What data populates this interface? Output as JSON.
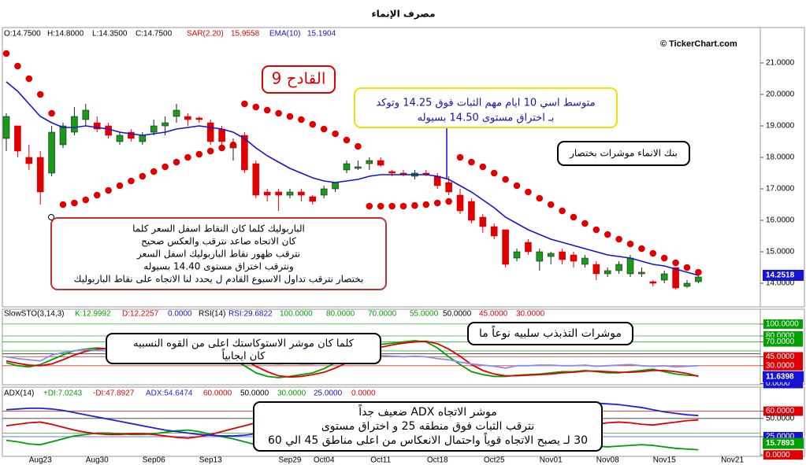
{
  "chart_data": [
    {
      "type": "candlestick",
      "title": "مصرف الإنماء",
      "header": [
        "O:14.7500",
        "H:14.8000",
        "L:14.3500",
        "C:14.7500"
      ],
      "watermark": "© TickerChart.com",
      "categories": [
        null,
        null,
        null,
        "Aug23",
        null,
        null,
        null,
        null,
        "Aug30",
        null,
        null,
        null,
        null,
        "Sep06",
        null,
        null,
        null,
        null,
        "Sep13",
        null,
        null,
        null,
        null,
        null,
        null,
        "Sep29",
        null,
        null,
        "Oct04",
        null,
        null,
        null,
        null,
        "Oct11",
        null,
        null,
        null,
        null,
        "Oct18",
        null,
        null,
        null,
        null,
        "Oct25",
        null,
        null,
        null,
        null,
        "Nov01",
        null,
        null,
        null,
        null,
        "Nov08",
        null,
        null,
        null,
        null,
        "Nov15",
        null,
        null,
        null,
        null,
        null,
        "Nov21"
      ],
      "open": [
        18.6,
        19.0,
        18.0,
        18.0,
        17.5,
        18.4,
        18.8,
        19.2,
        19.1,
        19.0,
        18.5,
        18.8,
        18.5,
        18.8,
        19.0,
        19.3,
        19.3,
        19.25,
        19.1,
        18.9,
        18.3,
        18.7,
        17.8,
        16.9,
        16.9,
        16.8,
        16.9,
        16.75,
        16.8,
        17.0,
        17.6,
        17.65,
        17.8,
        17.9,
        17.55,
        17.5,
        17.4,
        17.5,
        17.4,
        17.2,
        16.8,
        16.6,
        16.1,
        15.8,
        15.7,
        14.8,
        15.3,
        14.7,
        14.85,
        15.0,
        14.9,
        14.6,
        14.6,
        14.3,
        14.4,
        14.3,
        14.3,
        14.05,
        14.1,
        14.5,
        13.9,
        14.05,
        null,
        null,
        null
      ],
      "high": [
        19.4,
        19.0,
        18.4,
        18.2,
        19.0,
        19.1,
        19.6,
        19.7,
        19.3,
        19.1,
        18.8,
        18.9,
        18.8,
        19.2,
        19.3,
        19.7,
        19.4,
        19.3,
        19.2,
        19.0,
        18.6,
        18.8,
        17.9,
        17.0,
        17.0,
        17.0,
        17.0,
        16.8,
        17.1,
        17.2,
        17.9,
        17.9,
        18.0,
        18.0,
        17.6,
        17.6,
        17.6,
        17.6,
        17.5,
        17.4,
        17.0,
        16.7,
        16.2,
        15.9,
        15.7,
        15.1,
        15.4,
        15.1,
        15.0,
        15.1,
        15.0,
        14.9,
        14.7,
        14.5,
        14.7,
        14.9,
        14.5,
        14.1,
        14.4,
        14.5,
        14.1,
        14.3,
        null,
        null,
        null
      ],
      "low": [
        18.2,
        18.0,
        17.6,
        16.5,
        17.4,
        18.3,
        18.7,
        19.0,
        18.8,
        18.6,
        18.4,
        18.5,
        18.4,
        18.7,
        18.7,
        19.1,
        19.0,
        19.1,
        18.4,
        18.3,
        17.9,
        17.5,
        16.7,
        16.6,
        16.3,
        16.7,
        16.6,
        16.5,
        16.7,
        16.9,
        17.5,
        17.6,
        17.6,
        17.7,
        17.4,
        17.4,
        17.3,
        17.4,
        17.0,
        16.8,
        16.2,
        15.9,
        15.6,
        15.4,
        14.5,
        14.7,
        14.9,
        14.4,
        14.6,
        14.6,
        14.5,
        14.5,
        14.1,
        14.2,
        14.3,
        14.2,
        14.2,
        13.9,
        14.0,
        13.8,
        13.85,
        14.0,
        null,
        null,
        null
      ],
      "close": [
        19.3,
        18.2,
        17.8,
        16.9,
        18.8,
        19.0,
        19.3,
        19.5,
        18.9,
        18.7,
        18.7,
        18.6,
        18.7,
        19.0,
        19.1,
        19.5,
        19.2,
        19.2,
        18.5,
        18.5,
        18.4,
        17.6,
        16.8,
        16.8,
        16.8,
        16.9,
        16.8,
        16.6,
        17.0,
        17.2,
        17.8,
        17.7,
        17.9,
        17.75,
        17.5,
        17.45,
        17.5,
        17.45,
        17.1,
        16.9,
        16.3,
        16.0,
        15.8,
        15.5,
        14.6,
        15.0,
        15.0,
        15.0,
        14.95,
        14.75,
        14.7,
        14.8,
        14.3,
        14.4,
        14.6,
        14.8,
        14.35,
        14.0,
        14.3,
        13.85,
        14.0,
        14.2,
        null,
        null,
        null
      ],
      "up_color": "#1a9a1a",
      "down_color": "#e00000",
      "series": [
        {
          "name": "SAR(2.20)",
          "header_value": 15.9558,
          "color": "#e00000",
          "style": "dots",
          "values": [
            21.3,
            20.9,
            20.5,
            20.0,
            19.4,
            16.5,
            16.55,
            16.65,
            16.8,
            16.95,
            17.1,
            17.25,
            17.4,
            17.55,
            17.7,
            17.85,
            18.0,
            18.1,
            18.2,
            18.3,
            18.4,
            19.7,
            19.6,
            19.5,
            19.4,
            19.3,
            19.2,
            19.05,
            18.9,
            18.75,
            18.55,
            18.35,
            16.45,
            16.45,
            16.45,
            16.45,
            16.47,
            16.5,
            16.55,
            16.6,
            18.0,
            17.85,
            17.7,
            17.5,
            17.3,
            17.1,
            16.9,
            16.7,
            16.5,
            16.3,
            16.1,
            15.9,
            15.7,
            15.55,
            15.4,
            15.25,
            15.1,
            14.95,
            14.8,
            14.65,
            14.5,
            14.35,
            null,
            null,
            null
          ]
        },
        {
          "name": "EMA(10)",
          "header_value": 15.1904,
          "color": "#1414d2",
          "style": "line",
          "values": [
            20.4,
            20.1,
            19.7,
            19.3,
            19.1,
            18.95,
            18.95,
            19.0,
            18.95,
            18.9,
            18.8,
            18.75,
            18.7,
            18.75,
            18.8,
            18.9,
            18.95,
            19.0,
            18.95,
            18.9,
            18.8,
            18.6,
            18.3,
            18.05,
            17.85,
            17.65,
            17.5,
            17.35,
            17.25,
            17.2,
            17.25,
            17.3,
            17.4,
            17.45,
            17.45,
            17.45,
            17.45,
            17.45,
            17.4,
            17.3,
            17.1,
            16.9,
            16.65,
            16.4,
            16.1,
            15.9,
            15.7,
            15.55,
            15.4,
            15.3,
            15.2,
            15.1,
            15.0,
            14.9,
            14.85,
            14.8,
            14.7,
            14.6,
            14.55,
            14.45,
            14.35,
            14.25,
            null,
            null,
            null
          ]
        }
      ],
      "ylim": [
        13.25,
        22.125
      ],
      "yticks": [
        {
          "value": 21,
          "label": "21.0000"
        },
        {
          "value": 20,
          "label": "20.0000"
        },
        {
          "value": 19,
          "label": "19.0000"
        },
        {
          "value": 18,
          "label": "18.0000"
        },
        {
          "value": 17,
          "label": "17.0000"
        },
        {
          "value": 16,
          "label": "16.0000"
        },
        {
          "value": 15,
          "label": "15.0000"
        },
        {
          "value": 14,
          "label": "14.0000"
        }
      ],
      "last_label": 14.2518,
      "last_color": "#1414d2",
      "annotations": [
        {
          "lines": [
            "القادح 9"
          ],
          "color": "#e00000"
        },
        {
          "lines": [
            "متوسط اسي 10 ايام مهم الثبات فوق 14.25 وتوكد",
            "بـ اختراق مستوى 14.50 بسيوله"
          ],
          "color": "#1414a0"
        },
        {
          "lines": [
            "بنك الانماء موشرات بختصار"
          ],
          "color": "#000000"
        },
        {
          "lines": [
            "الباربوليك كلما كان النقاط اسفل السعر كلما",
            "كان الاتجاه صاعد نترقب والعكس صحيح",
            "نترقب ظهور نقاط الباربوليك اسفل السعر",
            "ونترقب  اختراق  مستوى 14.40 بسيوله",
            "بختصار نترقب تداول الاسبوع القادم ل يحدد لنا الاتجاه على نقاط الباربوليك"
          ],
          "color": "#000000"
        }
      ]
    },
    {
      "type": "line",
      "title": "SlowSTO(3,14,3)",
      "subtitle": "RSI(14)",
      "series": [
        {
          "name": "K:12.9992",
          "color": "#00a000",
          "values": [
            35,
            30,
            28,
            32,
            40,
            48,
            55,
            58,
            60,
            58,
            55,
            55,
            57,
            62,
            70,
            78,
            80,
            75,
            65,
            50,
            40,
            30,
            18,
            12,
            10,
            12,
            15,
            18,
            25,
            35,
            45,
            55,
            62,
            66,
            68,
            70,
            72,
            70,
            60,
            45,
            32,
            20,
            15,
            12,
            12,
            14,
            15,
            16,
            18,
            20,
            20,
            22,
            20,
            18,
            18,
            20,
            22,
            24,
            20,
            16,
            14,
            13,
            null,
            null,
            null
          ]
        },
        {
          "name": "D:12.2257",
          "color": "#e00000",
          "values": [
            38,
            34,
            31,
            30,
            33,
            40,
            48,
            54,
            58,
            59,
            58,
            56,
            56,
            58,
            63,
            70,
            76,
            78,
            73,
            63,
            52,
            40,
            29,
            20,
            13,
            11,
            12,
            15,
            19,
            26,
            35,
            45,
            54,
            61,
            65,
            68,
            70,
            71,
            67,
            58,
            46,
            32,
            22,
            16,
            13,
            13,
            14,
            15,
            16,
            18,
            19,
            21,
            21,
            20,
            19,
            19,
            20,
            22,
            22,
            20,
            17,
            12,
            null,
            null,
            null
          ]
        },
        {
          "name": "RSI:29.6822",
          "color": "#8c8cf0",
          "values": [
            45,
            42,
            40,
            38,
            48,
            52,
            55,
            57,
            56,
            55,
            54,
            53,
            54,
            56,
            58,
            60,
            61,
            58,
            52,
            50,
            48,
            42,
            36,
            34,
            33,
            34,
            33,
            33,
            36,
            40,
            45,
            46,
            48,
            47,
            46,
            45,
            46,
            45,
            42,
            40,
            36,
            33,
            31,
            29,
            26,
            30,
            30,
            31,
            31,
            30,
            30,
            31,
            29,
            30,
            31,
            32,
            30,
            29,
            30,
            28,
            29,
            30,
            null,
            null,
            null
          ]
        }
      ],
      "levels": [
        {
          "value": 100,
          "label": "100.0000",
          "color": "#00a000"
        },
        {
          "value": 80,
          "label": "80.0000",
          "color": "#00a000"
        },
        {
          "value": 70,
          "label": "70.0000",
          "color": "#00a000"
        },
        {
          "value": 55,
          "label": "55.0000",
          "color": "#00a000"
        },
        {
          "value": 50,
          "label": "50.0000",
          "color": "#000000"
        },
        {
          "value": 45,
          "label": "45.0000",
          "color": "#e00000"
        },
        {
          "value": 30,
          "label": "30.0000",
          "color": "#e00000"
        }
      ],
      "ylim": [
        -2,
        125
      ],
      "yticks": [
        {
          "value": 100,
          "label": "100.0000",
          "color": "#00a000"
        },
        {
          "value": 80,
          "label": "80.0000",
          "color": "#00a000"
        },
        {
          "value": 70,
          "label": "70.0000",
          "color": "#00a000"
        },
        {
          "value": 45,
          "label": "45.0000",
          "color": "#e00000"
        },
        {
          "value": 30,
          "label": "30.0000",
          "color": "#e00000"
        },
        {
          "value": 0,
          "label": "0.0000",
          "color": "#1414d2"
        }
      ],
      "last_label": 11.6398,
      "last_color": "#1414d2",
      "annotations": [
        {
          "lines": [
            "كلما كان موشر الاستوكاستك اعلى من القوه النسبيه",
            "كان ايجابياً"
          ],
          "color": "#000000"
        },
        {
          "lines": [
            "موشرات التذبذب سلبيه نوعاً ما"
          ],
          "color": "#000000"
        }
      ]
    },
    {
      "type": "line",
      "title": "ADX(14)",
      "series": [
        {
          "name": "+DI:7.0243",
          "color": "#00a000",
          "values": [
            20,
            18,
            15,
            14,
            18,
            22,
            26,
            28,
            30,
            30,
            29,
            28,
            28,
            29,
            31,
            33,
            34,
            32,
            28,
            25,
            22,
            18,
            14,
            12,
            10,
            11,
            13,
            15,
            18,
            22,
            26,
            28,
            29,
            29,
            28,
            27,
            27,
            26,
            24,
            21,
            17,
            14,
            12,
            10,
            9,
            10,
            10,
            11,
            12,
            12,
            12,
            13,
            12,
            11,
            12,
            13,
            14,
            13,
            11,
            9,
            8,
            7,
            null,
            null,
            null
          ]
        },
        {
          "name": "-DI:47.8927",
          "color": "#e00000",
          "values": [
            40,
            42,
            44,
            45,
            42,
            38,
            34,
            31,
            29,
            28,
            28,
            29,
            29,
            28,
            26,
            24,
            23,
            25,
            28,
            32,
            36,
            40,
            44,
            46,
            46,
            44,
            42,
            40,
            37,
            34,
            30,
            27,
            25,
            24,
            24,
            25,
            26,
            27,
            30,
            33,
            37,
            41,
            45,
            48,
            50,
            50,
            48,
            47,
            45,
            43,
            42,
            41,
            42,
            44,
            45,
            44,
            42,
            41,
            43,
            45,
            47,
            48,
            null,
            null,
            null
          ]
        },
        {
          "name": "ADX:54.6474",
          "color": "#2020e0",
          "values": [
            62,
            63,
            64,
            64,
            63,
            61,
            58,
            55,
            52,
            49,
            46,
            43,
            40,
            37,
            34,
            32,
            30,
            28,
            27,
            26,
            26,
            27,
            29,
            31,
            33,
            35,
            36,
            37,
            37,
            36,
            35,
            34,
            33,
            33,
            34,
            36,
            38,
            40,
            42,
            44,
            47,
            50,
            53,
            56,
            59,
            62,
            64,
            66,
            68,
            69,
            70,
            71,
            71,
            70,
            69,
            67,
            65,
            62,
            59,
            57,
            55,
            54,
            null,
            null,
            null
          ]
        }
      ],
      "levels": [
        {
          "value": 60,
          "label": "60.0000",
          "color": "#e00000"
        },
        {
          "value": 50,
          "label": "50.0000",
          "color": "#000000"
        },
        {
          "value": 30,
          "label": "30.0000",
          "color": "#00a000"
        },
        {
          "value": 25,
          "label": "25.0000",
          "color": "#1414d2"
        }
      ],
      "ylim": [
        -2,
        93
      ],
      "yticks": [
        {
          "value": 60,
          "label": "60.0000",
          "color": "#e00000"
        },
        {
          "value": 50,
          "label": "50.0000"
        },
        {
          "value": 25,
          "label": "25.0000",
          "color": "#1414d2"
        },
        {
          "value": 0,
          "label": "0.0000",
          "color": "#e00000"
        }
      ],
      "last_label": 15.7893,
      "last_color": "#00a000",
      "annotations": [
        {
          "lines": [
            "موشر الاتجاه ADX ضعيف جداً",
            "نترقب الثبات فوق منطقه 25 و اختراق مستوى",
            "30 لـ يصبح الاتجاه قوياً واحتمال الانعكاس من اعلى مناطق 45 الي 60"
          ],
          "color": "#000000"
        }
      ]
    }
  ]
}
